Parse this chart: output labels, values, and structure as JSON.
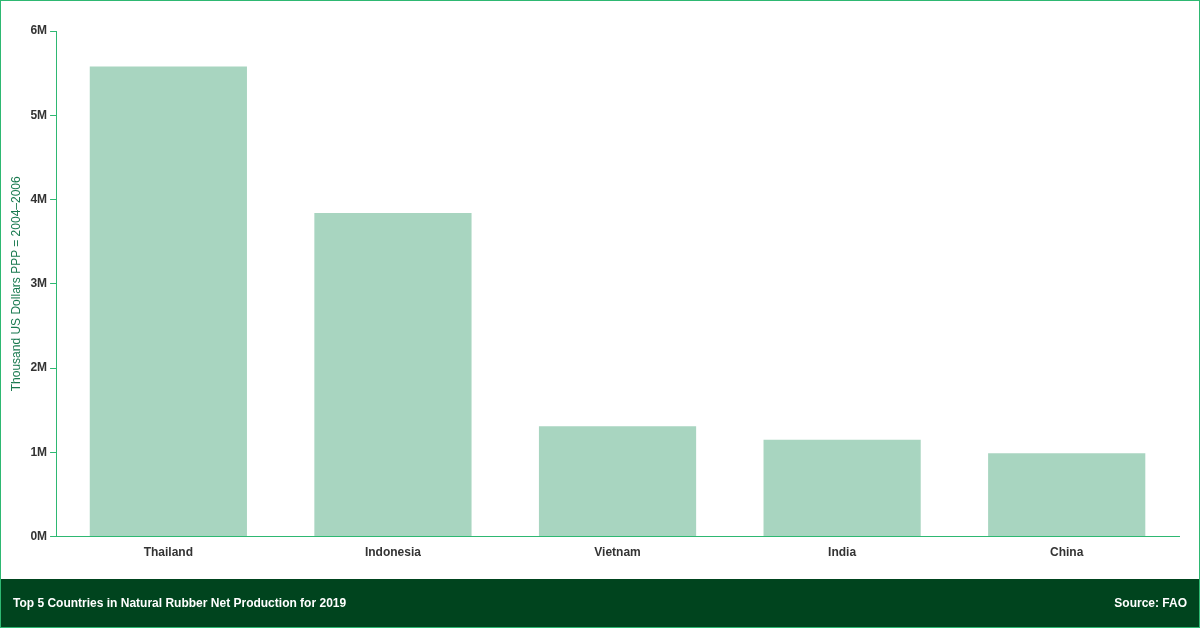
{
  "chart_data": {
    "type": "bar",
    "title": "Top 5 Countries in Natural Rubber Net Production for 2019",
    "ylabel": "Thousand US Dollars PPP = 2004–2006",
    "categories": [
      "Thailand",
      "Indonesia",
      "Vietnam",
      "India",
      "China"
    ],
    "values": [
      5580000,
      3840000,
      1310000,
      1150000,
      990000
    ],
    "color": "#a8d5c0",
    "ylim": [
      0,
      6000000
    ],
    "yticks": [
      {
        "value": 0,
        "label": "0M"
      },
      {
        "value": 1000000,
        "label": "1M"
      },
      {
        "value": 2000000,
        "label": "2M"
      },
      {
        "value": 3000000,
        "label": "3M"
      },
      {
        "value": 4000000,
        "label": "4M"
      },
      {
        "value": 5000000,
        "label": "5M"
      },
      {
        "value": 6000000,
        "label": "6M"
      }
    ],
    "grid": false,
    "legend": false,
    "annotations": [
      "Source:  FAO"
    ]
  }
}
